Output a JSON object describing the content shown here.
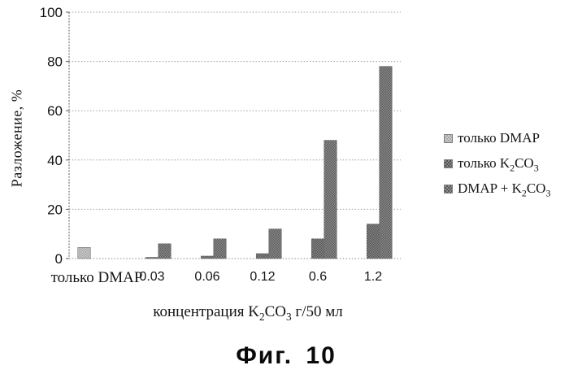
{
  "chart_data": {
    "type": "bar",
    "title": "Фиг. 10",
    "ylabel": "Разложение, %",
    "xlabel": "концентрация K₂CO₃ г/50 мл",
    "categories": [
      "только DMAP",
      "0.03",
      "0.06",
      "0.12",
      "0.6",
      "1.2"
    ],
    "series": [
      {
        "name": "только DMAP",
        "color": "#cfcfcf",
        "checker": "#a3a3a3",
        "values": [
          4.5,
          null,
          null,
          null,
          null,
          null
        ]
      },
      {
        "name": "только K₂CO₃",
        "color": "#8a8a8a",
        "checker": "#525252",
        "values": [
          null,
          0.5,
          1,
          2,
          8,
          14
        ]
      },
      {
        "name": "DMAP + K₂CO₃",
        "color": "#909090",
        "checker": "#575757",
        "values": [
          null,
          6,
          8,
          12,
          48,
          78
        ]
      }
    ],
    "ylim": [
      0,
      100
    ],
    "ytick_step": 20,
    "grid": true,
    "legend_position": "right"
  }
}
